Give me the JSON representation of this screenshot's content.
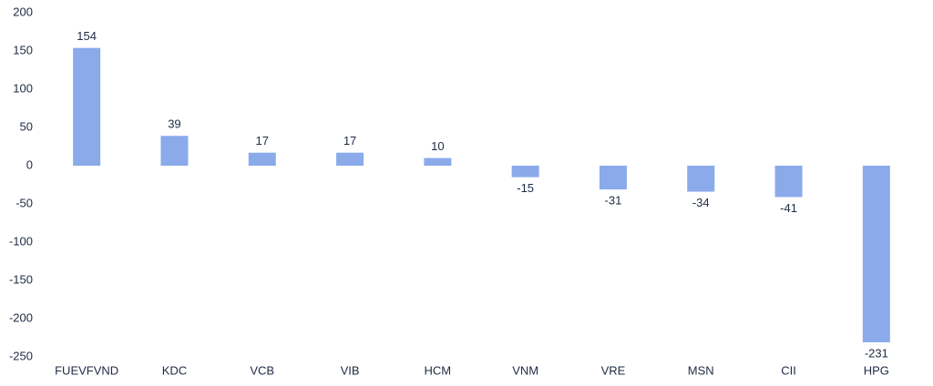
{
  "chart_data": {
    "type": "bar",
    "categories": [
      "FUEVFVND",
      "KDC",
      "VCB",
      "VIB",
      "HCM",
      "VNM",
      "VRE",
      "MSN",
      "CII",
      "HPG"
    ],
    "values": [
      154,
      39,
      17,
      17,
      10,
      -15,
      -31,
      -34,
      -41,
      -231
    ],
    "color": "#8aaaea",
    "ylim": [
      -250,
      200
    ],
    "yticks": [
      -250,
      -200,
      -150,
      -100,
      -50,
      0,
      50,
      100,
      150,
      200
    ],
    "grid": false,
    "data_labels": true
  }
}
